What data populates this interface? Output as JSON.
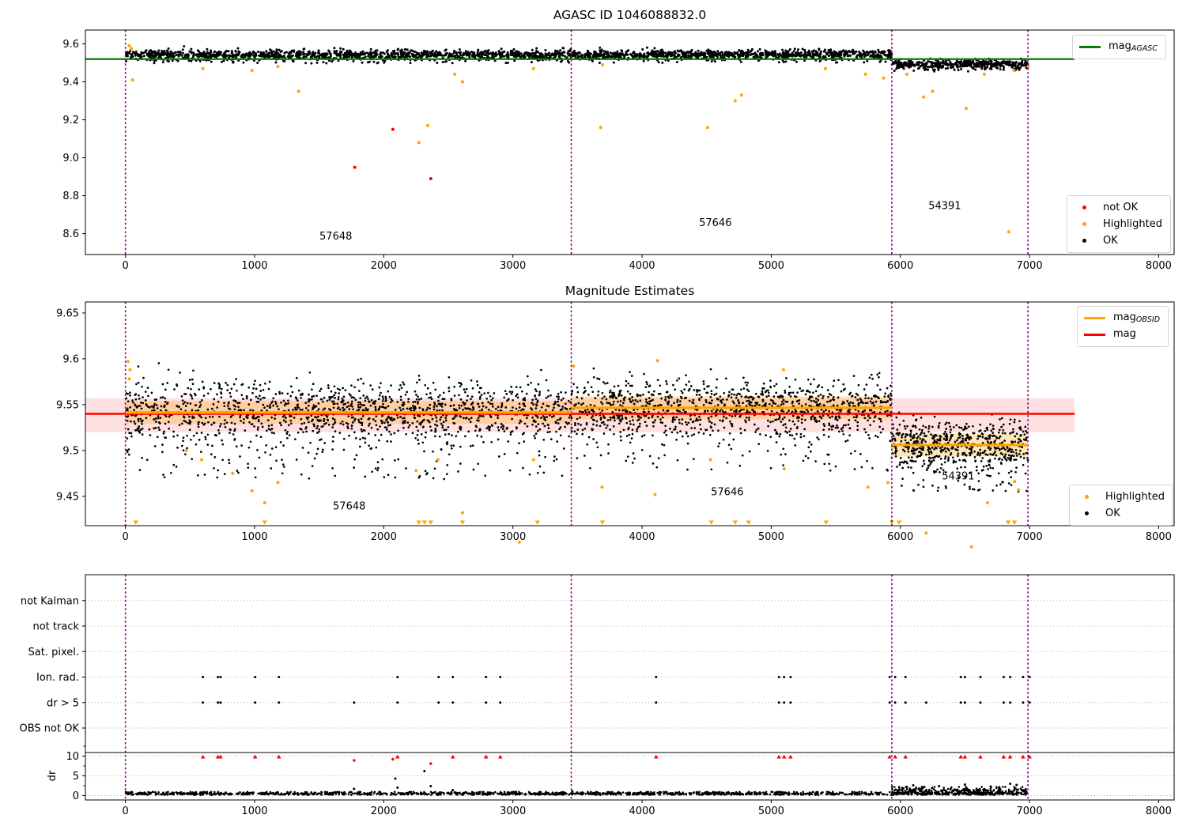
{
  "titles": {
    "plot1": "AGASC ID 1046088832.0",
    "plot2": "Magnitude Estimates"
  },
  "colors": {
    "ok": "#000000",
    "highlighted": "#ffa500",
    "not_ok": "#ff0000",
    "mag_agasc_line": "#008000",
    "mag_obsid_line": "#ffa500",
    "mag_line": "#ff0000",
    "obsid_boundary": "#800080",
    "mag_band": "rgba(255,0,0,0.12)",
    "obsid_band": "rgba(255,165,0,0.28)",
    "grid_dotted": "#aaaaaa"
  },
  "legends": {
    "plot1_line": [
      {
        "swatch": "line",
        "color": "#008000",
        "main": "mag",
        "sub": "AGASC"
      }
    ],
    "plot1_points": [
      {
        "swatch": "dot",
        "color": "#ff0000",
        "label": "not OK"
      },
      {
        "swatch": "dot",
        "color": "#ffa500",
        "label": "Highlighted"
      },
      {
        "swatch": "dot",
        "color": "#000000",
        "label": "OK"
      }
    ],
    "plot2_line": [
      {
        "swatch": "line",
        "color": "#ffa500",
        "main": "mag",
        "sub": "OBSID"
      },
      {
        "swatch": "line",
        "color": "#ff0000",
        "main": "mag",
        "sub": ""
      }
    ],
    "plot2_points": [
      {
        "swatch": "dot",
        "color": "#ffa500",
        "label": "Highlighted"
      },
      {
        "swatch": "dot",
        "color": "#000000",
        "label": "OK"
      }
    ]
  },
  "chart_data": [
    {
      "type": "scatter",
      "title": "AGASC ID 1046088832.0",
      "xlim": [
        -310,
        8120
      ],
      "ylim": [
        8.49,
        9.673
      ],
      "xticks": [
        0,
        1000,
        2000,
        3000,
        4000,
        5000,
        6000,
        7000,
        8000
      ],
      "yticks": [
        8.6,
        8.8,
        9.0,
        9.2,
        9.4,
        9.6
      ],
      "mag_agasc": 9.52,
      "line_extent": [
        -310,
        7350
      ],
      "obsid_boundaries": [
        0,
        3452,
        5934,
        6988
      ],
      "obsid_labels": [
        {
          "text": "57648",
          "x": 1629,
          "y": 8.57
        },
        {
          "text": "57646",
          "x": 4568,
          "y": 8.64
        },
        {
          "text": "54391",
          "x": 6344,
          "y": 8.73
        }
      ],
      "ok_clusters": [
        {
          "x0": 5,
          "x1": 3452,
          "mean": 9.542,
          "sd": 0.013,
          "n": 1250,
          "tail_frac": 0.05,
          "tail_lo": 9.497,
          "tail_hi": 9.52
        },
        {
          "x0": 3452,
          "x1": 5934,
          "mean": 9.545,
          "sd": 0.012,
          "n": 980,
          "tail_frac": 0.05,
          "tail_lo": 9.5,
          "tail_hi": 9.523
        },
        {
          "x0": 5934,
          "x1": 6988,
          "mean": 9.493,
          "sd": 0.012,
          "n": 450,
          "tail_frac": 0.04,
          "tail_lo": 9.455,
          "tail_hi": 9.475
        }
      ],
      "highlighted": [
        [
          30,
          9.59
        ],
        [
          45,
          9.575
        ],
        [
          55,
          9.41
        ],
        [
          600,
          9.47
        ],
        [
          980,
          9.46
        ],
        [
          1180,
          9.48
        ],
        [
          1341,
          9.35
        ],
        [
          2272,
          9.08
        ],
        [
          2340,
          9.17
        ],
        [
          2550,
          9.44
        ],
        [
          2610,
          9.4
        ],
        [
          3160,
          9.47
        ],
        [
          3680,
          9.16
        ],
        [
          3695,
          9.49
        ],
        [
          4507,
          9.16
        ],
        [
          4721,
          9.3
        ],
        [
          4770,
          9.33
        ],
        [
          5420,
          9.47
        ],
        [
          5730,
          9.44
        ],
        [
          5870,
          9.42
        ],
        [
          6050,
          9.44
        ],
        [
          6180,
          9.32
        ],
        [
          6250,
          9.35
        ],
        [
          6510,
          9.26
        ],
        [
          6650,
          9.44
        ],
        [
          6840,
          8.61
        ],
        [
          6880,
          9.46
        ],
        [
          6990,
          9.48
        ]
      ],
      "not_ok": [
        [
          1776,
          8.95
        ],
        [
          2070,
          9.15
        ],
        [
          2364,
          8.89
        ]
      ],
      "seed": 42
    },
    {
      "type": "scatter",
      "title": "Magnitude Estimates",
      "xlim": [
        -310,
        8120
      ],
      "ylim": [
        9.418,
        9.662
      ],
      "xticks": [
        0,
        1000,
        2000,
        3000,
        4000,
        5000,
        6000,
        7000,
        8000
      ],
      "yticks": [
        9.45,
        9.5,
        9.55,
        9.6,
        9.65
      ],
      "mag": 9.54,
      "mag_band": [
        9.52,
        9.557
      ],
      "band_extent": [
        -310,
        7350
      ],
      "obsid_segments": [
        {
          "x0": 0,
          "x1": 3452,
          "mag": 9.5415
        },
        {
          "x0": 3452,
          "x1": 5934,
          "mag": 9.5465
        },
        {
          "x0": 5934,
          "x1": 6988,
          "mag": 9.506
        }
      ],
      "obsid_band_halfwidth": 0.0125,
      "obsid_boundaries": [
        0,
        3452,
        5934,
        6988
      ],
      "obsid_labels": [
        {
          "text": "57648",
          "x": 1733,
          "y": 9.4355
        },
        {
          "text": "57646",
          "x": 4660,
          "y": 9.451
        },
        {
          "text": "54391",
          "x": 6448,
          "y": 9.4685
        }
      ],
      "ok_clusters": [
        {
          "x0": 5,
          "x1": 3452,
          "mean": 9.543,
          "sd": 0.016,
          "n": 1500,
          "tail_frac": 0.1,
          "tail_lo": 9.468,
          "tail_hi": 9.52
        },
        {
          "x0": 3452,
          "x1": 5934,
          "mean": 9.546,
          "sd": 0.015,
          "n": 1150,
          "tail_frac": 0.07,
          "tail_lo": 9.478,
          "tail_hi": 9.52
        },
        {
          "x0": 5934,
          "x1": 6988,
          "mean": 9.506,
          "sd": 0.013,
          "n": 640,
          "tail_frac": 0.08,
          "tail_lo": 9.455,
          "tail_hi": 9.49
        }
      ],
      "highlighted": [
        [
          20,
          9.597
        ],
        [
          35,
          9.588
        ],
        [
          30,
          9.578
        ],
        [
          471,
          9.5
        ],
        [
          590,
          9.49
        ],
        [
          830,
          9.475
        ],
        [
          980,
          9.456
        ],
        [
          1078,
          9.443
        ],
        [
          1180,
          9.465
        ],
        [
          2250,
          9.478
        ],
        [
          2420,
          9.49
        ],
        [
          2610,
          9.432
        ],
        [
          3050,
          9.4
        ],
        [
          3160,
          9.49
        ],
        [
          3470,
          9.592
        ],
        [
          3690,
          9.46
        ],
        [
          4100,
          9.452
        ],
        [
          4120,
          9.598
        ],
        [
          4530,
          9.49
        ],
        [
          5095,
          9.588
        ],
        [
          5100,
          9.48
        ],
        [
          5750,
          9.46
        ],
        [
          5903,
          9.465
        ],
        [
          6200,
          9.41
        ],
        [
          6550,
          9.395
        ],
        [
          6675,
          9.443
        ],
        [
          6884,
          9.466
        ],
        [
          6915,
          9.457
        ]
      ],
      "clipped_low_x": [
        80,
        1078,
        2272,
        2315,
        2364,
        2609,
        3190,
        3693,
        4537,
        4721,
        4825,
        5425,
        5934,
        5990,
        6835,
        6884
      ],
      "seed": 7
    },
    {
      "type": "flags",
      "rows": [
        "not Kalman",
        "not track",
        "Sat. pixel.",
        "Ion. rad.",
        "dr > 5",
        "OBS not OK"
      ],
      "dr_label": "dr",
      "dr_ticks": [
        10,
        5,
        0
      ],
      "dr_clip_line": 10.9,
      "xlim": [
        -310,
        8120
      ],
      "xticks": [
        0,
        1000,
        2000,
        3000,
        4000,
        5000,
        6000,
        7000,
        8000
      ],
      "obsid_boundaries": [
        0,
        3452,
        5934,
        6988
      ],
      "row_points": {
        "Ion. rad.": [
          600,
          716,
          736,
          1004,
          1188,
          2107,
          2425,
          2535,
          2792,
          2902,
          4109,
          5060,
          5100,
          5150,
          5917,
          5960,
          6040,
          6468,
          6500,
          6620,
          6800,
          6850,
          6950,
          7000
        ],
        "dr > 5": [
          600,
          716,
          736,
          1004,
          1188,
          1771,
          2107,
          2425,
          2535,
          2792,
          2902,
          4109,
          5060,
          5100,
          5150,
          5917,
          5960,
          6040,
          6200,
          6468,
          6500,
          6620,
          6800,
          6850,
          6950,
          7000
        ]
      },
      "red_clipped_x": [
        600,
        716,
        736,
        1004,
        1188,
        2107,
        2535,
        2792,
        2902,
        4109,
        5060,
        5100,
        5150,
        5917,
        5960,
        6040,
        6468,
        6500,
        6620,
        6800,
        6850,
        6950,
        7000
      ],
      "red_points": [
        [
          1771,
          8.9
        ],
        [
          2364,
          8.1
        ],
        [
          2070,
          9.2
        ]
      ],
      "dr_baseline": {
        "x0": 0,
        "x1": 6988,
        "n": 1500,
        "lo": 0.15,
        "hi": 0.95
      },
      "dr_extra": [
        {
          "x0": 5934,
          "x1": 6988,
          "n": 260,
          "lo": 0.3,
          "hi": 2.2
        }
      ],
      "dr_outliers": [
        [
          2090,
          4.3
        ],
        [
          2315,
          6.2
        ],
        [
          2364,
          2.4
        ],
        [
          1770,
          1.7
        ],
        [
          2535,
          1.4
        ],
        [
          2107,
          2.0
        ],
        [
          3460,
          1.1
        ],
        [
          6100,
          2.6
        ],
        [
          6300,
          2.4
        ],
        [
          6500,
          2.8
        ],
        [
          6700,
          2.3
        ],
        [
          6900,
          2.7
        ],
        [
          6050,
          2.2
        ],
        [
          6850,
          3.0
        ]
      ],
      "seed": 99
    }
  ]
}
